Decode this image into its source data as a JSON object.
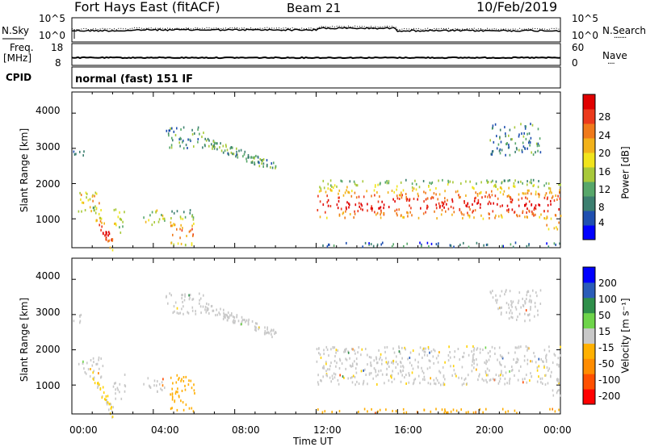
{
  "header": {
    "station": "Fort Hays East (fitACF)",
    "beam": "Beam 21",
    "date": "10/Feb/2019"
  },
  "noise_panel": {
    "left_label": "N.Sky",
    "left_ticks": [
      "10^5",
      "10^0"
    ],
    "right_ticks": [
      "10^5",
      "10^0"
    ],
    "right_label": "N.Search",
    "right_dots": "·······"
  },
  "freq_panel": {
    "left_label_1": "Freq.",
    "left_label_2": "[MHz]",
    "left_ticks": [
      "18",
      "8"
    ],
    "right_ticks": [
      "60",
      "0"
    ],
    "right_label": "Nave",
    "right_dots": "····",
    "cpid_label": "CPID",
    "cpid_text": "normal (fast) 151 IF"
  },
  "x_axis": {
    "title": "Time UT",
    "ticks": [
      "00:00",
      "04:00",
      "08:00",
      "12:00",
      "16:00",
      "20:00",
      "00:00"
    ]
  },
  "power_panel": {
    "ylabel": "Slant Range [km]",
    "yticks": [
      "4000",
      "3000",
      "2000",
      "1000"
    ],
    "colorbar_label": "Power [dB]",
    "colorbar_ticks": [
      "28",
      "24",
      "20",
      "16",
      "12",
      "8",
      "4"
    ]
  },
  "velocity_panel": {
    "ylabel": "Slant Range [km]",
    "yticks": [
      "4000",
      "3000",
      "2000",
      "1000"
    ],
    "colorbar_label": "Velocity [m s⁻¹]",
    "colorbar_ticks": [
      "200",
      "100",
      "50",
      "15",
      "-15",
      "-50",
      "-100",
      "-200"
    ]
  },
  "chart_data": {
    "type": "heatmap",
    "title": "Fort Hays East (fitACF)   Beam 21   10/Feb/2019",
    "xlabel": "Time UT",
    "ylabel": "Slant Range [km]",
    "xlim_hours": [
      0,
      24
    ],
    "ylim_km": [
      180,
      4600
    ],
    "power_scale_db": [
      0,
      30
    ],
    "velocity_scale": [
      -250,
      250
    ],
    "power_colors": [
      "#0000ff",
      "#1f4fb0",
      "#3c7f70",
      "#57a76a",
      "#a8c93a",
      "#f1e41c",
      "#f2b21a",
      "#f07a1b",
      "#ec3a1c",
      "#e00000"
    ],
    "velocity_colors": [
      "#ff0000",
      "#ff4a00",
      "#ff7f00",
      "#ffae00",
      "#ffd200",
      "#c8c8c8",
      "#6ed44a",
      "#2f8f4a",
      "#2a5cb8",
      "#0000ff"
    ],
    "echo_regions": [
      {
        "t": [
          0.0,
          0.6
        ],
        "r": [
          2750,
          3050
        ],
        "power": 8,
        "velocity": 0
      },
      {
        "t": [
          0.3,
          1.5
        ],
        "r": [
          1200,
          1800
        ],
        "power": 18,
        "velocity": 0
      },
      {
        "t": [
          1.0,
          2.0
        ],
        "r": [
          200,
          1300
        ],
        "power": 26,
        "velocity": -20,
        "trend": "descending"
      },
      {
        "t": [
          2.0,
          2.6
        ],
        "r": [
          600,
          1300
        ],
        "power": 14,
        "velocity": 10
      },
      {
        "t": [
          3.5,
          4.6
        ],
        "r": [
          800,
          1250
        ],
        "power": 16,
        "velocity": 0
      },
      {
        "t": [
          4.8,
          6.0
        ],
        "r": [
          250,
          1300
        ],
        "power": 22,
        "velocity": -80
      },
      {
        "t": [
          4.5,
          6.5
        ],
        "r": [
          3000,
          3600
        ],
        "power": 9,
        "velocity": 0
      },
      {
        "t": [
          6.5,
          10.0
        ],
        "r": [
          2450,
          3200
        ],
        "power": 10,
        "velocity": 0,
        "trend": "descending"
      },
      {
        "t": [
          12.0,
          24.0
        ],
        "r": [
          1000,
          2100
        ],
        "power": 26,
        "velocity": -5
      },
      {
        "t": [
          12.0,
          24.0
        ],
        "r": [
          200,
          320
        ],
        "power": 6,
        "velocity": -90
      },
      {
        "t": [
          20.5,
          23.0
        ],
        "r": [
          2800,
          3700
        ],
        "power": 8,
        "velocity": 0
      },
      {
        "t": [
          23.2,
          24.0
        ],
        "r": [
          700,
          900
        ],
        "power": 20,
        "velocity": 0
      }
    ]
  }
}
